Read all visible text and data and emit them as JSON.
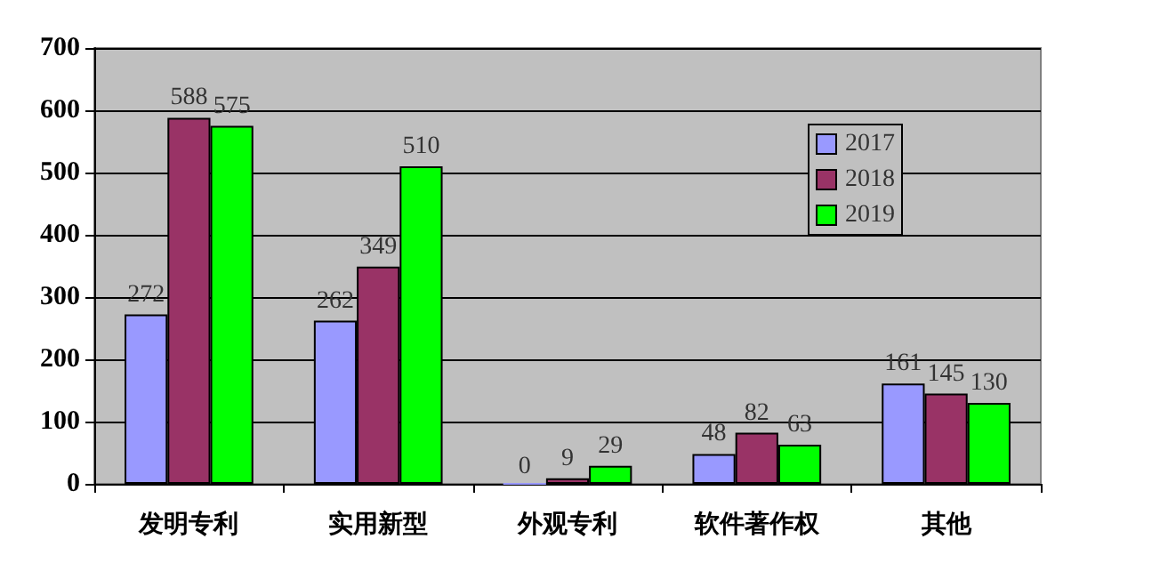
{
  "chart_data": {
    "type": "bar",
    "categories": [
      "发明专利",
      "实用新型",
      "外观专利",
      "软件著作权",
      "其他"
    ],
    "series": [
      {
        "name": "2017",
        "color": "#9999ff",
        "values": [
          272,
          262,
          0,
          48,
          161
        ]
      },
      {
        "name": "2018",
        "color": "#993366",
        "values": [
          588,
          349,
          9,
          82,
          145
        ]
      },
      {
        "name": "2019",
        "color": "#00ff00",
        "values": [
          575,
          510,
          29,
          63,
          130
        ]
      }
    ],
    "ylim": [
      0,
      700
    ],
    "yticks": [
      0,
      100,
      200,
      300,
      400,
      500,
      600,
      700
    ],
    "grid": "y",
    "legend": "top right",
    "data_labels": true
  }
}
